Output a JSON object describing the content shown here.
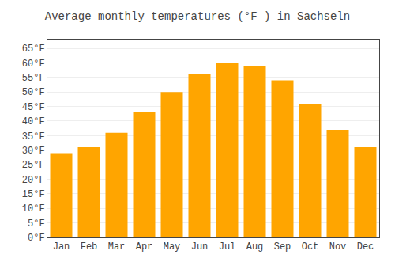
{
  "chart_data": {
    "type": "bar",
    "title": "Average monthly temperatures (°F ) in Sachseln",
    "categories": [
      "Jan",
      "Feb",
      "Mar",
      "Apr",
      "May",
      "Jun",
      "Jul",
      "Aug",
      "Sep",
      "Oct",
      "Nov",
      "Dec"
    ],
    "values": [
      29,
      31,
      36,
      43,
      50,
      56,
      60,
      59,
      54,
      46,
      37,
      31
    ],
    "color": "#FFA500",
    "ylim": [
      0,
      68
    ],
    "yticks": [
      {
        "value": 0,
        "label": "0°F"
      },
      {
        "value": 5,
        "label": "5°F"
      },
      {
        "value": 10,
        "label": "10°F"
      },
      {
        "value": 15,
        "label": "15°F"
      },
      {
        "value": 20,
        "label": "20°F"
      },
      {
        "value": 25,
        "label": "25°F"
      },
      {
        "value": 30,
        "label": "30°F"
      },
      {
        "value": 35,
        "label": "35°F"
      },
      {
        "value": 40,
        "label": "40°F"
      },
      {
        "value": 45,
        "label": "45°F"
      },
      {
        "value": 50,
        "label": "50°F"
      },
      {
        "value": 55,
        "label": "55°F"
      },
      {
        "value": 60,
        "label": "60°F"
      },
      {
        "value": 65,
        "label": "65°F"
      }
    ],
    "grid": true
  }
}
